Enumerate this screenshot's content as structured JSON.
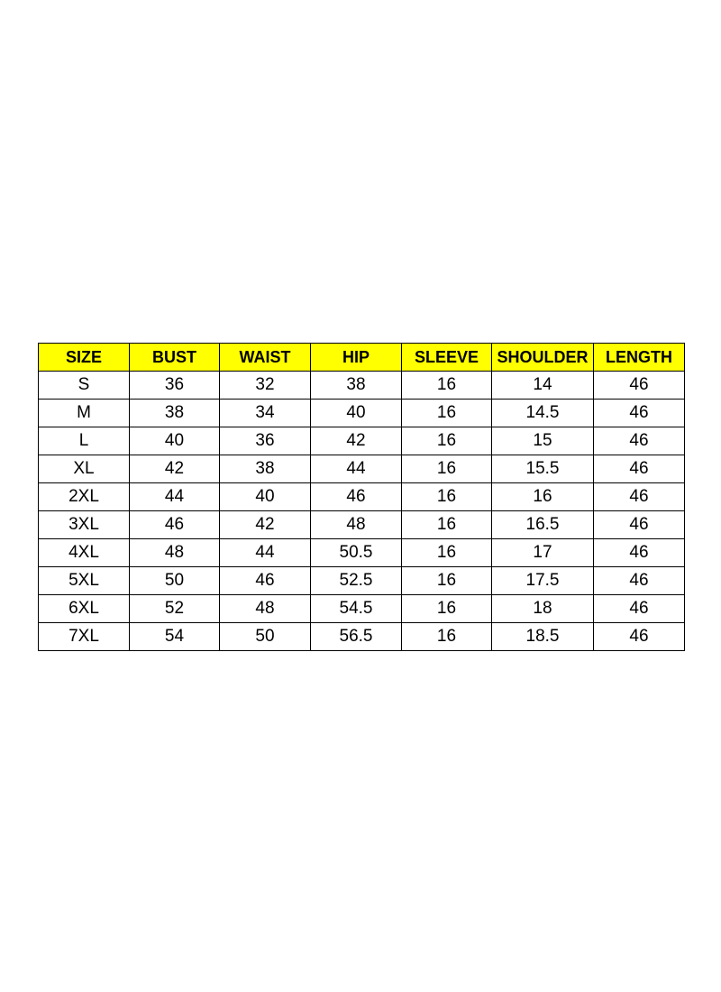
{
  "header_color": "#ffff00",
  "columns": [
    "SIZE",
    "BUST",
    "WAIST",
    "HIP",
    "SLEEVE",
    "SHOULDER",
    "LENGTH"
  ],
  "rows": [
    [
      "S",
      "36",
      "32",
      "38",
      "16",
      "14",
      "46"
    ],
    [
      "M",
      "38",
      "34",
      "40",
      "16",
      "14.5",
      "46"
    ],
    [
      "L",
      "40",
      "36",
      "42",
      "16",
      "15",
      "46"
    ],
    [
      "XL",
      "42",
      "38",
      "44",
      "16",
      "15.5",
      "46"
    ],
    [
      "2XL",
      "44",
      "40",
      "46",
      "16",
      "16",
      "46"
    ],
    [
      "3XL",
      "46",
      "42",
      "48",
      "16",
      "16.5",
      "46"
    ],
    [
      "4XL",
      "48",
      "44",
      "50.5",
      "16",
      "17",
      "46"
    ],
    [
      "5XL",
      "50",
      "46",
      "52.5",
      "16",
      "17.5",
      "46"
    ],
    [
      "6XL",
      "52",
      "48",
      "54.5",
      "16",
      "18",
      "46"
    ],
    [
      "7XL",
      "54",
      "50",
      "56.5",
      "16",
      "18.5",
      "46"
    ]
  ]
}
